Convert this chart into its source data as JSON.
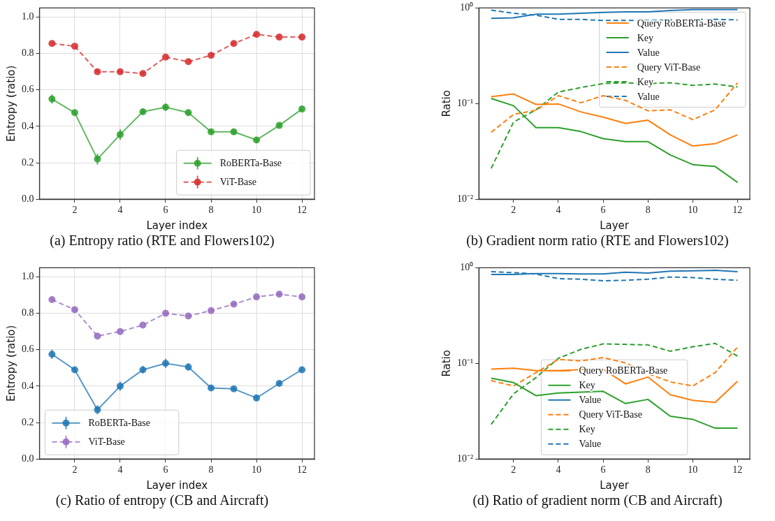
{
  "chart_data": [
    {
      "type": "line",
      "xlabel": "Layer index",
      "ylabel": "Entropy (ratio)",
      "annotations": [
        "(a) Entropy ratio (RTE and Flowers102)"
      ],
      "x": [
        1,
        2,
        3,
        4,
        5,
        6,
        7,
        8,
        9,
        10,
        11,
        12
      ],
      "xlim": [
        0.45,
        12.55
      ],
      "xticks": [
        2,
        4,
        6,
        8,
        10,
        12
      ],
      "ylim": [
        0,
        1.05
      ],
      "yticks": [
        {
          "value": 0,
          "label": "0.0"
        },
        0.2,
        0.4,
        0.6,
        0.8,
        {
          "value": 1,
          "label": "1.0"
        }
      ],
      "grid": true,
      "legend": "bottom right",
      "marker": "circle",
      "series": [
        {
          "name": "RoBERTa-Base",
          "color": "#2ca02c",
          "line_style": "solid",
          "values": [
            0.55,
            0.475,
            0.22,
            0.355,
            0.48,
            0.505,
            0.475,
            0.37,
            0.37,
            0.325,
            0.405,
            0.495
          ],
          "errors": [
            0.025,
            0.01,
            0.03,
            0.03,
            0.015,
            0.02,
            0.015,
            0.01,
            0.015,
            0.015,
            0.01,
            0.01
          ]
        },
        {
          "name": "ViT-Base",
          "color": "#d62728",
          "line_style": "dashed",
          "values": [
            0.855,
            0.84,
            0.7,
            0.7,
            0.69,
            0.78,
            0.755,
            0.79,
            0.855,
            0.905,
            0.89,
            0.89
          ]
        }
      ]
    },
    {
      "type": "line",
      "xlabel": "Layer",
      "ylabel": "Ratio",
      "annotations": [
        "(b) Gradient norm ratio (RTE and Flowers102)"
      ],
      "x": [
        1,
        2,
        3,
        4,
        5,
        6,
        7,
        8,
        9,
        10,
        11,
        12
      ],
      "xlim": [
        0.45,
        12.55
      ],
      "xticks": [
        2,
        4,
        6,
        8,
        10,
        12
      ],
      "ylim": [
        0.01,
        1
      ],
      "yticks": [
        {
          "value": 0.01,
          "label": "10⁻²"
        },
        {
          "value": 0.1,
          "label": "10⁻¹"
        },
        {
          "value": 1,
          "label": "10⁰"
        }
      ],
      "log": true,
      "legend": "top right",
      "series": [
        {
          "name": "Query RoBERTa-Base",
          "color": "#ff7f0e",
          "line_style": "solid",
          "values": [
            0.118,
            0.126,
            0.098,
            0.099,
            0.082,
            0.072,
            0.062,
            0.067,
            0.047,
            0.036,
            0.038,
            0.047
          ]
        },
        {
          "name": "Key",
          "color": "#2ca02c",
          "line_style": "solid",
          "values": [
            0.113,
            0.095,
            0.056,
            0.056,
            0.051,
            0.043,
            0.04,
            0.04,
            0.029,
            0.023,
            0.022,
            0.015
          ]
        },
        {
          "name": "Value",
          "color": "#1f77b4",
          "line_style": "solid",
          "values": [
            0.78,
            0.79,
            0.86,
            0.86,
            0.88,
            0.9,
            0.91,
            0.91,
            0.94,
            0.96,
            0.96,
            0.96
          ]
        },
        {
          "name": "Query ViT-Base",
          "color": "#ff7f0e",
          "line_style": "dashed",
          "values": [
            0.05,
            0.077,
            0.085,
            0.121,
            0.102,
            0.121,
            0.108,
            0.084,
            0.086,
            0.068,
            0.086,
            0.165
          ]
        },
        {
          "name": "Key",
          "color": "#2ca02c",
          "line_style": "dashed",
          "values": [
            0.021,
            0.064,
            0.086,
            0.132,
            0.147,
            0.162,
            0.165,
            0.162,
            0.165,
            0.155,
            0.16,
            0.149
          ]
        },
        {
          "name": "Value",
          "color": "#1f77b4",
          "line_style": "dashed",
          "values": [
            0.95,
            0.88,
            0.84,
            0.76,
            0.76,
            0.74,
            0.74,
            0.74,
            0.75,
            0.76,
            0.76,
            0.75
          ]
        }
      ]
    },
    {
      "type": "line",
      "xlabel": "Layer index",
      "ylabel": "Entropy (ratio)",
      "annotations": [
        "(c) Ratio of entropy (CB and Aircraft)"
      ],
      "x": [
        1,
        2,
        3,
        4,
        5,
        6,
        7,
        8,
        9,
        10,
        11,
        12
      ],
      "xlim": [
        0.45,
        12.55
      ],
      "xticks": [
        2,
        4,
        6,
        8,
        10,
        12
      ],
      "ylim": [
        0,
        1.05
      ],
      "yticks": [
        {
          "value": 0,
          "label": "0.0"
        },
        0.2,
        0.4,
        0.6,
        0.8,
        {
          "value": 1,
          "label": "1.0"
        }
      ],
      "grid": true,
      "legend": "bottom left",
      "marker": "circle",
      "series": [
        {
          "name": "RoBERTa-Base",
          "color": "#1f77b4",
          "line_style": "solid",
          "values": [
            0.575,
            0.49,
            0.27,
            0.4,
            0.49,
            0.525,
            0.505,
            0.39,
            0.385,
            0.335,
            0.415,
            0.49
          ],
          "errors": [
            0.025,
            0.01,
            0.025,
            0.025,
            0.02,
            0.025,
            0.02,
            0.01,
            0.01,
            0.015,
            0.01,
            0.01
          ]
        },
        {
          "name": "ViT-Base",
          "color": "#9467bd",
          "line_style": "dashed",
          "values": [
            0.875,
            0.82,
            0.675,
            0.7,
            0.735,
            0.8,
            0.785,
            0.815,
            0.85,
            0.89,
            0.905,
            0.89
          ]
        }
      ]
    },
    {
      "type": "line",
      "xlabel": "Layer",
      "ylabel": "Ratio",
      "annotations": [
        "(d) Ratio of gradient norm (CB and Aircraft)"
      ],
      "x": [
        1,
        2,
        3,
        4,
        5,
        6,
        7,
        8,
        9,
        10,
        11,
        12
      ],
      "xlim": [
        0.45,
        12.55
      ],
      "xticks": [
        2,
        4,
        6,
        8,
        10,
        12
      ],
      "ylim": [
        0.01,
        1
      ],
      "yticks": [
        {
          "value": 0.01,
          "label": "10⁻²"
        },
        {
          "value": 0.1,
          "label": "10⁻¹"
        },
        {
          "value": 1,
          "label": "10⁰"
        }
      ],
      "log": true,
      "legend": "bottom",
      "series": [
        {
          "name": "Query RoBERTa-Base",
          "color": "#ff7f0e",
          "line_style": "solid",
          "values": [
            0.087,
            0.089,
            0.084,
            0.084,
            0.086,
            0.087,
            0.061,
            0.072,
            0.047,
            0.041,
            0.039,
            0.065
          ]
        },
        {
          "name": "Key",
          "color": "#2ca02c",
          "line_style": "solid",
          "values": [
            0.07,
            0.063,
            0.046,
            0.049,
            0.05,
            0.051,
            0.038,
            0.042,
            0.028,
            0.026,
            0.021,
            0.021
          ]
        },
        {
          "name": "Value",
          "color": "#1f77b4",
          "line_style": "solid",
          "values": [
            0.85,
            0.85,
            0.87,
            0.87,
            0.86,
            0.86,
            0.9,
            0.88,
            0.92,
            0.93,
            0.94,
            0.91
          ]
        },
        {
          "name": "Query ViT-Base",
          "color": "#ff7f0e",
          "line_style": "dashed",
          "values": [
            0.066,
            0.058,
            0.08,
            0.11,
            0.106,
            0.115,
            0.101,
            0.078,
            0.064,
            0.058,
            0.08,
            0.148
          ]
        },
        {
          "name": "Key",
          "color": "#2ca02c",
          "line_style": "dashed",
          "values": [
            0.023,
            0.048,
            0.071,
            0.113,
            0.14,
            0.16,
            0.158,
            0.156,
            0.134,
            0.149,
            0.162,
            0.119
          ]
        },
        {
          "name": "Value",
          "color": "#1f77b4",
          "line_style": "dashed",
          "values": [
            0.91,
            0.89,
            0.86,
            0.77,
            0.76,
            0.73,
            0.74,
            0.76,
            0.8,
            0.79,
            0.76,
            0.74
          ]
        }
      ]
    }
  ]
}
